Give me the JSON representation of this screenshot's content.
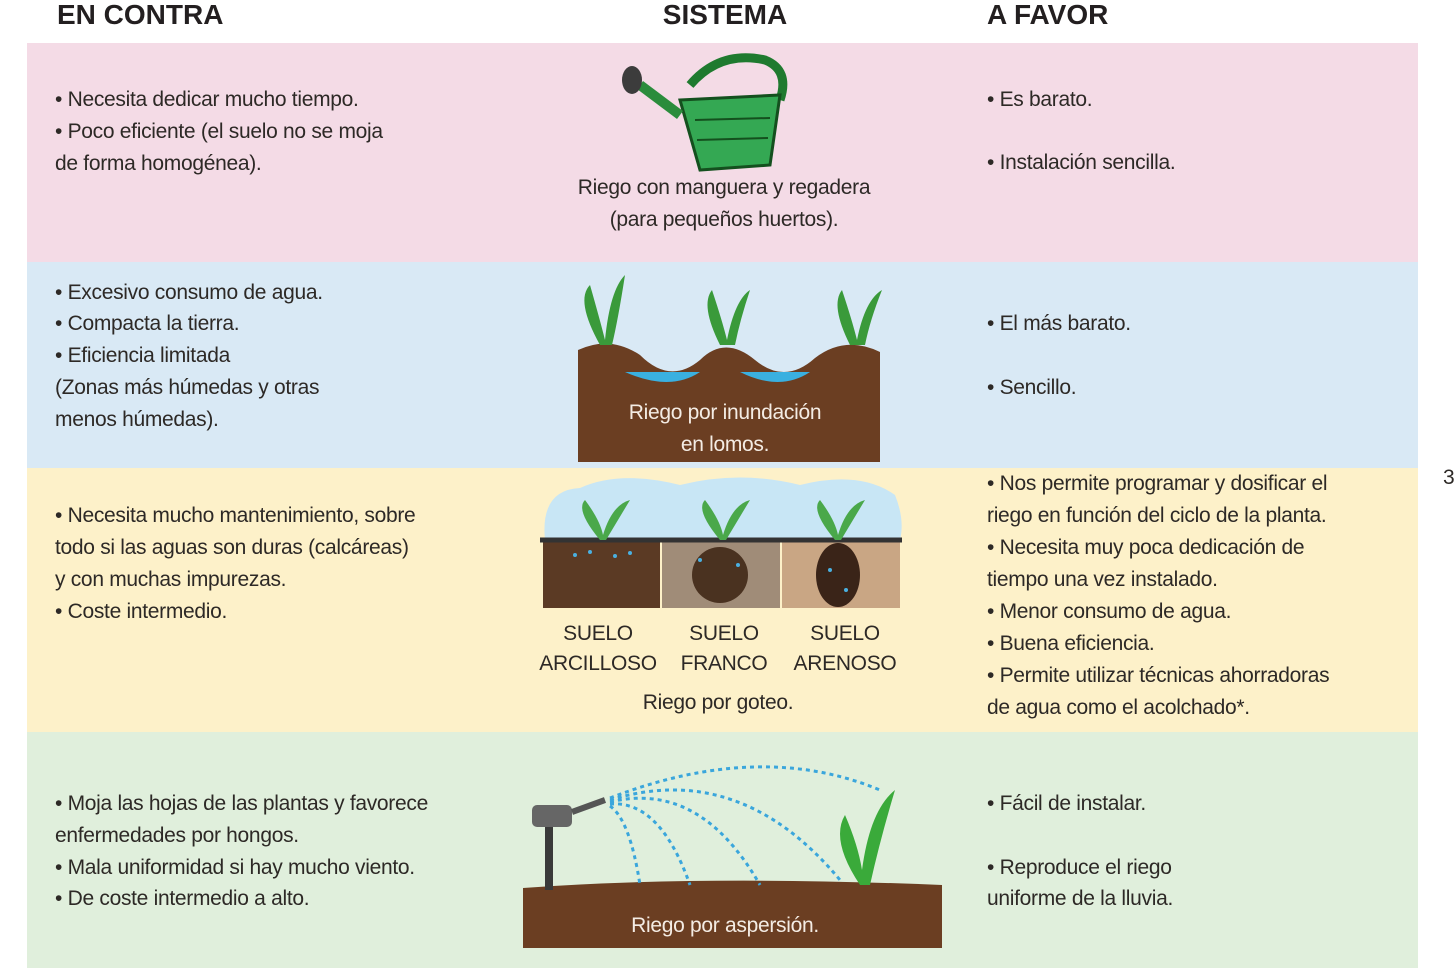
{
  "header": {
    "contra": "EN CONTRA",
    "sistema": "SISTEMA",
    "favor": "A FAVOR"
  },
  "rows": [
    {
      "contra": [
        "• Necesita dedicar mucho tiempo.",
        "• Poco eficiente (el suelo no se moja",
        "de forma homogénea)."
      ],
      "sistema": [
        "Riego con manguera y regadera",
        "(para pequeños huertos)."
      ],
      "favor": [
        "• Es barato.",
        "• Instalación sencilla."
      ]
    },
    {
      "contra": [
        "• Excesivo consumo de agua.",
        "• Compacta la tierra.",
        "• Eficiencia limitada",
        "(Zonas más húmedas y otras",
        "menos húmedas)."
      ],
      "sistema": [
        "Riego por inundación",
        "en lomos."
      ],
      "favor": [
        "• El más barato.",
        "• Sencillo."
      ]
    },
    {
      "contra": [
        "• Necesita mucho mantenimiento, sobre",
        "todo si las aguas son duras (calcáreas)",
        "y con muchas impurezas.",
        "• Coste intermedio."
      ],
      "soils": [
        [
          "SUELO",
          "ARCILLOSO"
        ],
        [
          "SUELO",
          "FRANCO"
        ],
        [
          "SUELO",
          "ARENOSO"
        ]
      ],
      "sistema": [
        "Riego por goteo."
      ],
      "favor": [
        "• Nos permite programar y dosificar el",
        "riego en función del ciclo de la planta.",
        "• Necesita muy poca dedicación de",
        "tiempo una vez instalado.",
        "• Menor consumo de agua.",
        "• Buena eficiencia.",
        "• Permite utilizar técnicas ahorradoras",
        "de agua como el acolchado*."
      ]
    },
    {
      "contra": [
        "• Moja las hojas de las plantas y favorece",
        "enfermedades por hongos.",
        "• Mala uniformidad si hay mucho viento.",
        "• De coste intermedio a alto."
      ],
      "sistema": [
        "Riego por aspersión."
      ],
      "favor": [
        "• Fácil de instalar.",
        "• Reproduce el riego",
        "uniforme de la lluvia."
      ]
    }
  ],
  "page_mark": "3"
}
